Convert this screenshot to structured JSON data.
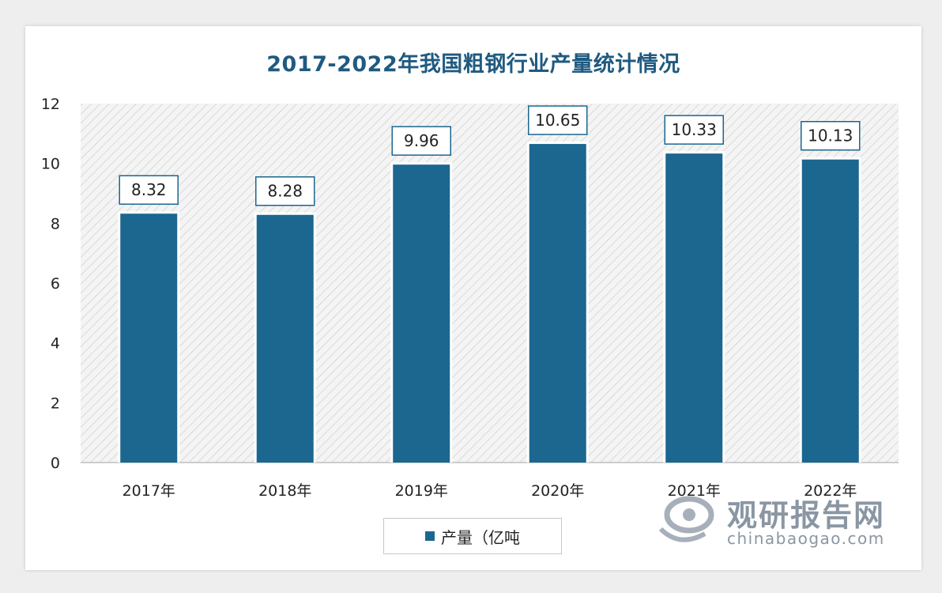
{
  "chart_data": {
    "type": "bar",
    "title": "2017-2022年我国粗钢行业产量统计情况",
    "categories": [
      "2017年",
      "2018年",
      "2019年",
      "2020年",
      "2021年",
      "2022年"
    ],
    "series": [
      {
        "name": "产量（亿吨",
        "values": [
          8.32,
          8.28,
          9.96,
          10.65,
          10.33,
          10.13
        ]
      }
    ],
    "data_labels": [
      "8.32",
      "8.28",
      "9.96",
      "10.65",
      "10.33",
      "10.13"
    ],
    "ylim": [
      0,
      12
    ],
    "yticks": [
      "0",
      "2",
      "4",
      "6",
      "8",
      "10",
      "12"
    ],
    "ytick_values": [
      0,
      2,
      4,
      6,
      8,
      10,
      12
    ],
    "bar_color": "#1b678f",
    "plot_background": "hatched-light-gray",
    "legend_position": "bottom-center"
  },
  "watermark": {
    "name": "观研报告网",
    "url": "chinabaogao.com"
  }
}
